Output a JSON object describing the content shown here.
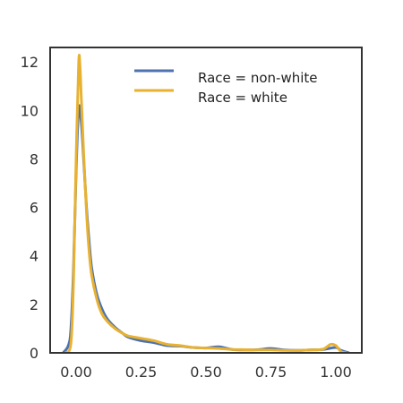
{
  "chart_data": {
    "type": "line",
    "title": "",
    "xlabel": "",
    "ylabel": "",
    "xlim": [
      -0.1,
      1.1
    ],
    "ylim": [
      0,
      12.6
    ],
    "grid": false,
    "legend_placement": "top-right",
    "x_ticks": [
      {
        "value": 0.0,
        "label": "0.00"
      },
      {
        "value": 0.25,
        "label": "0.25"
      },
      {
        "value": 0.5,
        "label": "0.50"
      },
      {
        "value": 0.75,
        "label": "0.75"
      },
      {
        "value": 1.0,
        "label": "1.00"
      }
    ],
    "y_ticks": [
      {
        "value": 0,
        "label": "0"
      },
      {
        "value": 2,
        "label": "2"
      },
      {
        "value": 4,
        "label": "4"
      },
      {
        "value": 6,
        "label": "6"
      },
      {
        "value": 8,
        "label": "8"
      },
      {
        "value": 10,
        "label": "10"
      },
      {
        "value": 12,
        "label": "12"
      }
    ],
    "series": [
      {
        "name": "Race = non-white",
        "color": "#4C72B0",
        "x": [
          -0.05,
          -0.03,
          -0.02,
          -0.01,
          0.0,
          0.01,
          0.02,
          0.03,
          0.04,
          0.05,
          0.06,
          0.08,
          0.1,
          0.12,
          0.15,
          0.18,
          0.2,
          0.25,
          0.3,
          0.35,
          0.4,
          0.45,
          0.5,
          0.55,
          0.6,
          0.65,
          0.7,
          0.75,
          0.8,
          0.85,
          0.9,
          0.95,
          1.0,
          1.02,
          1.05
        ],
        "y": [
          0.0,
          0.3,
          1.0,
          3.5,
          7.5,
          10.1,
          9.5,
          7.8,
          6.0,
          4.6,
          3.5,
          2.4,
          1.8,
          1.4,
          1.05,
          0.8,
          0.65,
          0.5,
          0.42,
          0.3,
          0.28,
          0.22,
          0.2,
          0.25,
          0.14,
          0.12,
          0.13,
          0.18,
          0.12,
          0.1,
          0.12,
          0.14,
          0.22,
          0.1,
          0.0
        ]
      },
      {
        "name": "Race = white",
        "color": "#E8B130",
        "x": [
          -0.04,
          -0.02,
          -0.01,
          0.0,
          0.01,
          0.015,
          0.02,
          0.03,
          0.04,
          0.05,
          0.06,
          0.08,
          0.1,
          0.12,
          0.15,
          0.18,
          0.2,
          0.25,
          0.3,
          0.35,
          0.4,
          0.45,
          0.5,
          0.55,
          0.6,
          0.65,
          0.7,
          0.75,
          0.8,
          0.85,
          0.9,
          0.95,
          0.98,
          1.0,
          1.02,
          1.04
        ],
        "y": [
          0.0,
          0.4,
          3.0,
          8.0,
          12.0,
          11.8,
          10.5,
          8.0,
          5.8,
          4.2,
          3.2,
          2.2,
          1.6,
          1.3,
          1.0,
          0.8,
          0.7,
          0.6,
          0.5,
          0.35,
          0.3,
          0.22,
          0.2,
          0.18,
          0.14,
          0.13,
          0.12,
          0.12,
          0.1,
          0.1,
          0.12,
          0.15,
          0.35,
          0.3,
          0.05,
          0.0
        ]
      }
    ]
  }
}
